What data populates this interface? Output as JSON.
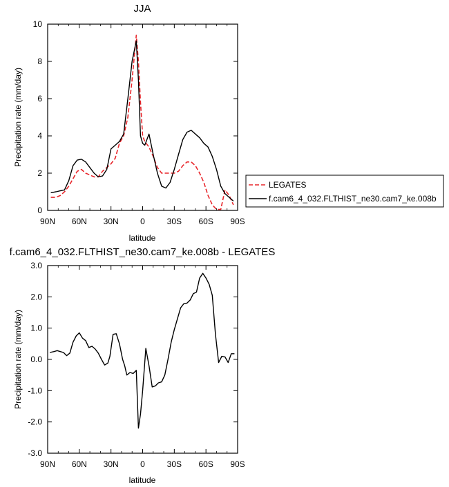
{
  "chart_data": [
    {
      "type": "line",
      "title": "JJA",
      "xlabel": "latitude",
      "ylabel": "Precipitation rate (mm/day)",
      "xlim": [
        90,
        -90
      ],
      "ylim": [
        0,
        10
      ],
      "x_ticks": [
        {
          "value": 90,
          "label": "90N"
        },
        {
          "value": 60,
          "label": "60N"
        },
        {
          "value": 30,
          "label": "30N"
        },
        {
          "value": 0,
          "label": "0"
        },
        {
          "value": -30,
          "label": "30S"
        },
        {
          "value": -60,
          "label": "60S"
        },
        {
          "value": -90,
          "label": "90S"
        }
      ],
      "y_ticks": [
        {
          "value": 0,
          "label": "0"
        },
        {
          "value": 2,
          "label": "2"
        },
        {
          "value": 4,
          "label": "4"
        },
        {
          "value": 6,
          "label": "6"
        },
        {
          "value": 8,
          "label": "8"
        },
        {
          "value": 10,
          "label": "10"
        }
      ],
      "legend": {
        "placement": "right"
      },
      "series": [
        {
          "name": "LEGATES",
          "color": "#e8262b",
          "dash": true,
          "x": [
            87,
            82,
            78,
            74,
            70,
            66,
            62,
            58,
            54,
            50,
            46,
            42,
            38,
            34,
            30,
            26,
            22,
            18,
            14,
            10,
            6,
            4,
            2,
            0,
            -2,
            -6,
            -10,
            -14,
            -18,
            -22,
            -26,
            -30,
            -34,
            -38,
            -42,
            -46,
            -50,
            -54,
            -58,
            -62,
            -66,
            -70,
            -74,
            -78,
            -82,
            -86
          ],
          "y": [
            0.7,
            0.7,
            0.8,
            1.0,
            1.3,
            1.7,
            2.1,
            2.2,
            2.0,
            1.9,
            1.8,
            1.8,
            2.1,
            2.3,
            2.5,
            2.8,
            3.6,
            4.0,
            5.0,
            7.0,
            9.4,
            8.0,
            5.8,
            4.0,
            3.7,
            3.4,
            2.9,
            2.3,
            2.0,
            2.0,
            2.0,
            2.0,
            2.1,
            2.4,
            2.6,
            2.6,
            2.4,
            2.0,
            1.5,
            0.8,
            0.3,
            0.05,
            0.05,
            1.1,
            0.8,
            0.3
          ]
        },
        {
          "name": "f.cam6_4_032.FLTHIST_ne30.cam7_ke.008b",
          "color": "#000000",
          "dash": false,
          "x": [
            87,
            82,
            78,
            74,
            70,
            66,
            62,
            58,
            54,
            50,
            46,
            42,
            38,
            34,
            30,
            26,
            22,
            18,
            14,
            10,
            6,
            4,
            2,
            0,
            -2,
            -6,
            -10,
            -14,
            -18,
            -22,
            -26,
            -30,
            -34,
            -38,
            -42,
            -46,
            -50,
            -54,
            -58,
            -62,
            -66,
            -70,
            -74,
            -78,
            -82,
            -86
          ],
          "y": [
            0.95,
            1.0,
            1.05,
            1.1,
            1.6,
            2.4,
            2.7,
            2.75,
            2.6,
            2.3,
            2.0,
            1.8,
            1.85,
            2.2,
            3.3,
            3.5,
            3.7,
            4.1,
            6.0,
            8.0,
            9.1,
            7.0,
            4.0,
            3.6,
            3.5,
            4.1,
            3.0,
            2.0,
            1.3,
            1.2,
            1.5,
            2.2,
            3.0,
            3.8,
            4.2,
            4.3,
            4.1,
            3.9,
            3.6,
            3.4,
            2.9,
            2.2,
            1.3,
            0.9,
            0.7,
            0.5
          ]
        }
      ]
    },
    {
      "type": "line",
      "title": "f.cam6_4_032.FLTHIST_ne30.cam7_ke.008b - LEGATES",
      "xlabel": "latitude",
      "ylabel": "Precipitation rate (mm/day)",
      "xlim": [
        90,
        -90
      ],
      "ylim": [
        -3,
        3
      ],
      "x_ticks": [
        {
          "value": 90,
          "label": "90N"
        },
        {
          "value": 60,
          "label": "60N"
        },
        {
          "value": 30,
          "label": "30N"
        },
        {
          "value": 0,
          "label": "0"
        },
        {
          "value": -30,
          "label": "30S"
        },
        {
          "value": -60,
          "label": "60S"
        },
        {
          "value": -90,
          "label": "90S"
        }
      ],
      "y_ticks": [
        {
          "value": -3,
          "label": "-3.0"
        },
        {
          "value": -2,
          "label": "-2.0"
        },
        {
          "value": -1,
          "label": "-1.0"
        },
        {
          "value": 0,
          "label": "0.0"
        },
        {
          "value": 1,
          "label": "1.0"
        },
        {
          "value": 2,
          "label": "2.0"
        },
        {
          "value": 3,
          "label": "3.0"
        }
      ],
      "series": [
        {
          "color": "#000000",
          "dash": false,
          "x": [
            88,
            84,
            81,
            78,
            75,
            72,
            69,
            66,
            63,
            60,
            57,
            54,
            51,
            48,
            45,
            42,
            39,
            36,
            33,
            31,
            28,
            25,
            22,
            19,
            17,
            15,
            12,
            9,
            6,
            4,
            2,
            0,
            -3,
            -6,
            -9,
            -12,
            -15,
            -18,
            -21,
            -24,
            -27,
            -30,
            -33,
            -36,
            -39,
            -42,
            -45,
            -48,
            -51,
            -54,
            -57,
            -60,
            -63,
            -66,
            -69,
            -72,
            -75,
            -78,
            -81,
            -84,
            -87
          ],
          "y": [
            0.22,
            0.25,
            0.28,
            0.25,
            0.22,
            0.12,
            0.2,
            0.55,
            0.75,
            0.85,
            0.68,
            0.6,
            0.38,
            0.42,
            0.33,
            0.2,
            0.0,
            -0.18,
            -0.12,
            0.1,
            0.8,
            0.82,
            0.5,
            0.0,
            -0.2,
            -0.5,
            -0.42,
            -0.45,
            -0.35,
            -2.2,
            -1.75,
            -1.0,
            0.35,
            -0.2,
            -0.88,
            -0.85,
            -0.75,
            -0.72,
            -0.5,
            0.0,
            0.55,
            0.95,
            1.3,
            1.65,
            1.78,
            1.8,
            1.9,
            2.1,
            2.15,
            2.6,
            2.75,
            2.6,
            2.4,
            2.05,
            0.8,
            -0.1,
            0.1,
            0.08,
            -0.1,
            0.18,
            0.18
          ]
        }
      ]
    }
  ]
}
